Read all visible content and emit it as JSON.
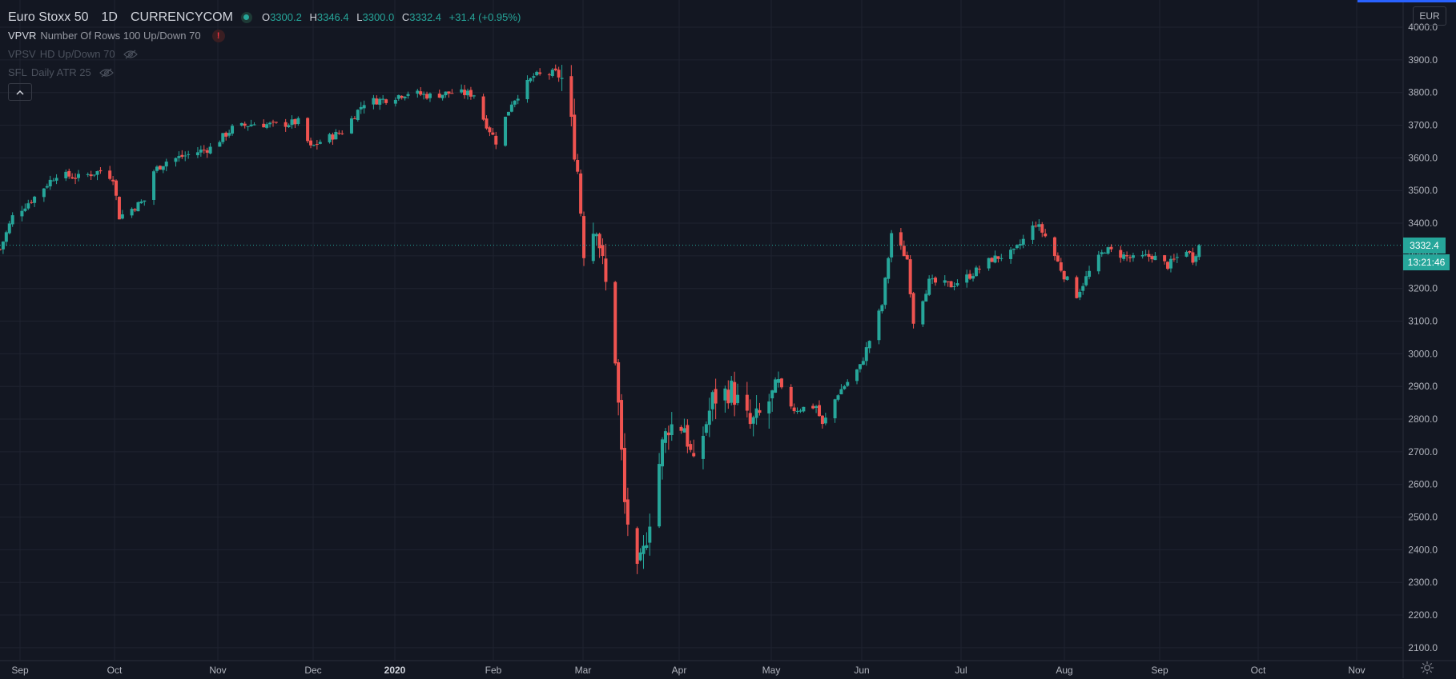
{
  "header": {
    "symbol": "Euro Stoxx 50",
    "interval": "1D",
    "exchange": "CURRENCYCOM",
    "ohlc": {
      "o_label": "O",
      "o": "3300.2",
      "h_label": "H",
      "h": "3346.4",
      "l_label": "L",
      "l": "3300.0",
      "c_label": "C",
      "c": "3332.4",
      "change": "+31.4 (+0.95%)"
    }
  },
  "indicators": [
    {
      "name": "VPVR",
      "args": "Number Of Rows 100 Up/Down 70",
      "icon": "warning-icon",
      "warning_glyph": "!"
    },
    {
      "name": "VPSV",
      "args": "HD Up/Down 70",
      "icon": "eye-hidden-icon"
    },
    {
      "name": "SFL",
      "args": "Daily ATR 25",
      "icon": "eye-hidden-icon"
    }
  ],
  "collapse_icon": "chevron-up-icon",
  "currency_badge": "EUR",
  "last_price_tag": "3332.4",
  "countdown_tag": "13:21:46",
  "colors": {
    "background": "#131722",
    "up": "#26a69a",
    "down": "#ef5350",
    "grid": "#1f2330",
    "text": "#d1d4dc",
    "accent": "#2962ff"
  },
  "chart_data": {
    "type": "candlestick",
    "x_axis_labels": [
      "Sep",
      "Oct",
      "Nov",
      "Dec",
      "2020",
      "Feb",
      "Mar",
      "Apr",
      "May",
      "Jun",
      "Jul",
      "Aug",
      "Sep",
      "Oct",
      "Nov"
    ],
    "y_axis_labels": [
      "4000.0",
      "3900.0",
      "3800.0",
      "3700.0",
      "3600.0",
      "3500.0",
      "3400.0",
      "3300.0",
      "3200.0",
      "3100.0",
      "3000.0",
      "2900.0",
      "2800.0",
      "2700.0",
      "2600.0",
      "2500.0",
      "2400.0",
      "2300.0",
      "2200.0",
      "2100.0"
    ],
    "ylim": [
      2085,
      4005
    ],
    "x_range": [
      "2019-08-26",
      "2020-11-15"
    ],
    "last_close": 3332.4,
    "grid": true,
    "closes": [
      {
        "date": "2019-08-26",
        "close": 3320
      },
      {
        "date": "2019-08-30",
        "close": 3420
      },
      {
        "date": "2019-09-06",
        "close": 3480
      },
      {
        "date": "2019-09-13",
        "close": 3550
      },
      {
        "date": "2019-09-20",
        "close": 3540
      },
      {
        "date": "2019-09-27",
        "close": 3560
      },
      {
        "date": "2019-10-01",
        "close": 3540
      },
      {
        "date": "2019-10-03",
        "close": 3420
      },
      {
        "date": "2019-10-08",
        "close": 3450
      },
      {
        "date": "2019-10-11",
        "close": 3470
      },
      {
        "date": "2019-10-14",
        "close": 3560
      },
      {
        "date": "2019-10-18",
        "close": 3590
      },
      {
        "date": "2019-10-25",
        "close": 3610
      },
      {
        "date": "2019-11-01",
        "close": 3630
      },
      {
        "date": "2019-11-08",
        "close": 3690
      },
      {
        "date": "2019-11-15",
        "close": 3705
      },
      {
        "date": "2019-11-22",
        "close": 3700
      },
      {
        "date": "2019-11-29",
        "close": 3710
      },
      {
        "date": "2019-12-03",
        "close": 3630
      },
      {
        "date": "2019-12-06",
        "close": 3650
      },
      {
        "date": "2019-12-13",
        "close": 3680
      },
      {
        "date": "2019-12-20",
        "close": 3770
      },
      {
        "date": "2019-12-27",
        "close": 3780
      },
      {
        "date": "2020-01-03",
        "close": 3800
      },
      {
        "date": "2020-01-10",
        "close": 3790
      },
      {
        "date": "2020-01-17",
        "close": 3800
      },
      {
        "date": "2020-01-24",
        "close": 3795
      },
      {
        "date": "2020-01-27",
        "close": 3720
      },
      {
        "date": "2020-01-31",
        "close": 3650
      },
      {
        "date": "2020-02-05",
        "close": 3770
      },
      {
        "date": "2020-02-12",
        "close": 3850
      },
      {
        "date": "2020-02-19",
        "close": 3860
      },
      {
        "date": "2020-02-21",
        "close": 3840
      },
      {
        "date": "2020-02-24",
        "close": 3700
      },
      {
        "date": "2020-02-26",
        "close": 3560
      },
      {
        "date": "2020-02-28",
        "close": 3320
      },
      {
        "date": "2020-03-03",
        "close": 3400
      },
      {
        "date": "2020-03-06",
        "close": 3210
      },
      {
        "date": "2020-03-09",
        "close": 2990
      },
      {
        "date": "2020-03-12",
        "close": 2540
      },
      {
        "date": "2020-03-16",
        "close": 2320
      },
      {
        "date": "2020-03-18",
        "close": 2390
      },
      {
        "date": "2020-03-20",
        "close": 2500
      },
      {
        "date": "2020-03-24",
        "close": 2720
      },
      {
        "date": "2020-03-26",
        "close": 2780
      },
      {
        "date": "2020-03-31",
        "close": 2780
      },
      {
        "date": "2020-04-03",
        "close": 2650
      },
      {
        "date": "2020-04-09",
        "close": 2860
      },
      {
        "date": "2020-04-15",
        "close": 2890
      },
      {
        "date": "2020-04-21",
        "close": 2780
      },
      {
        "date": "2020-04-24",
        "close": 2810
      },
      {
        "date": "2020-04-30",
        "close": 2900
      },
      {
        "date": "2020-05-05",
        "close": 2830
      },
      {
        "date": "2020-05-12",
        "close": 2840
      },
      {
        "date": "2020-05-14",
        "close": 2780
      },
      {
        "date": "2020-05-19",
        "close": 2880
      },
      {
        "date": "2020-05-26",
        "close": 2960
      },
      {
        "date": "2020-06-02",
        "close": 3150
      },
      {
        "date": "2020-06-05",
        "close": 3370
      },
      {
        "date": "2020-06-10",
        "close": 3290
      },
      {
        "date": "2020-06-12",
        "close": 3100
      },
      {
        "date": "2020-06-17",
        "close": 3220
      },
      {
        "date": "2020-06-24",
        "close": 3210
      },
      {
        "date": "2020-06-30",
        "close": 3240
      },
      {
        "date": "2020-07-07",
        "close": 3290
      },
      {
        "date": "2020-07-14",
        "close": 3310
      },
      {
        "date": "2020-07-21",
        "close": 3400
      },
      {
        "date": "2020-07-24",
        "close": 3360
      },
      {
        "date": "2020-07-30",
        "close": 3240
      },
      {
        "date": "2020-08-03",
        "close": 3180
      },
      {
        "date": "2020-08-07",
        "close": 3250
      },
      {
        "date": "2020-08-12",
        "close": 3320
      },
      {
        "date": "2020-08-18",
        "close": 3300
      },
      {
        "date": "2020-08-21",
        "close": 3290
      },
      {
        "date": "2020-08-27",
        "close": 3300
      },
      {
        "date": "2020-09-01",
        "close": 3270
      },
      {
        "date": "2020-09-07",
        "close": 3320
      },
      {
        "date": "2020-09-09",
        "close": 3290
      },
      {
        "date": "2020-09-11",
        "close": 3332.4
      }
    ]
  }
}
